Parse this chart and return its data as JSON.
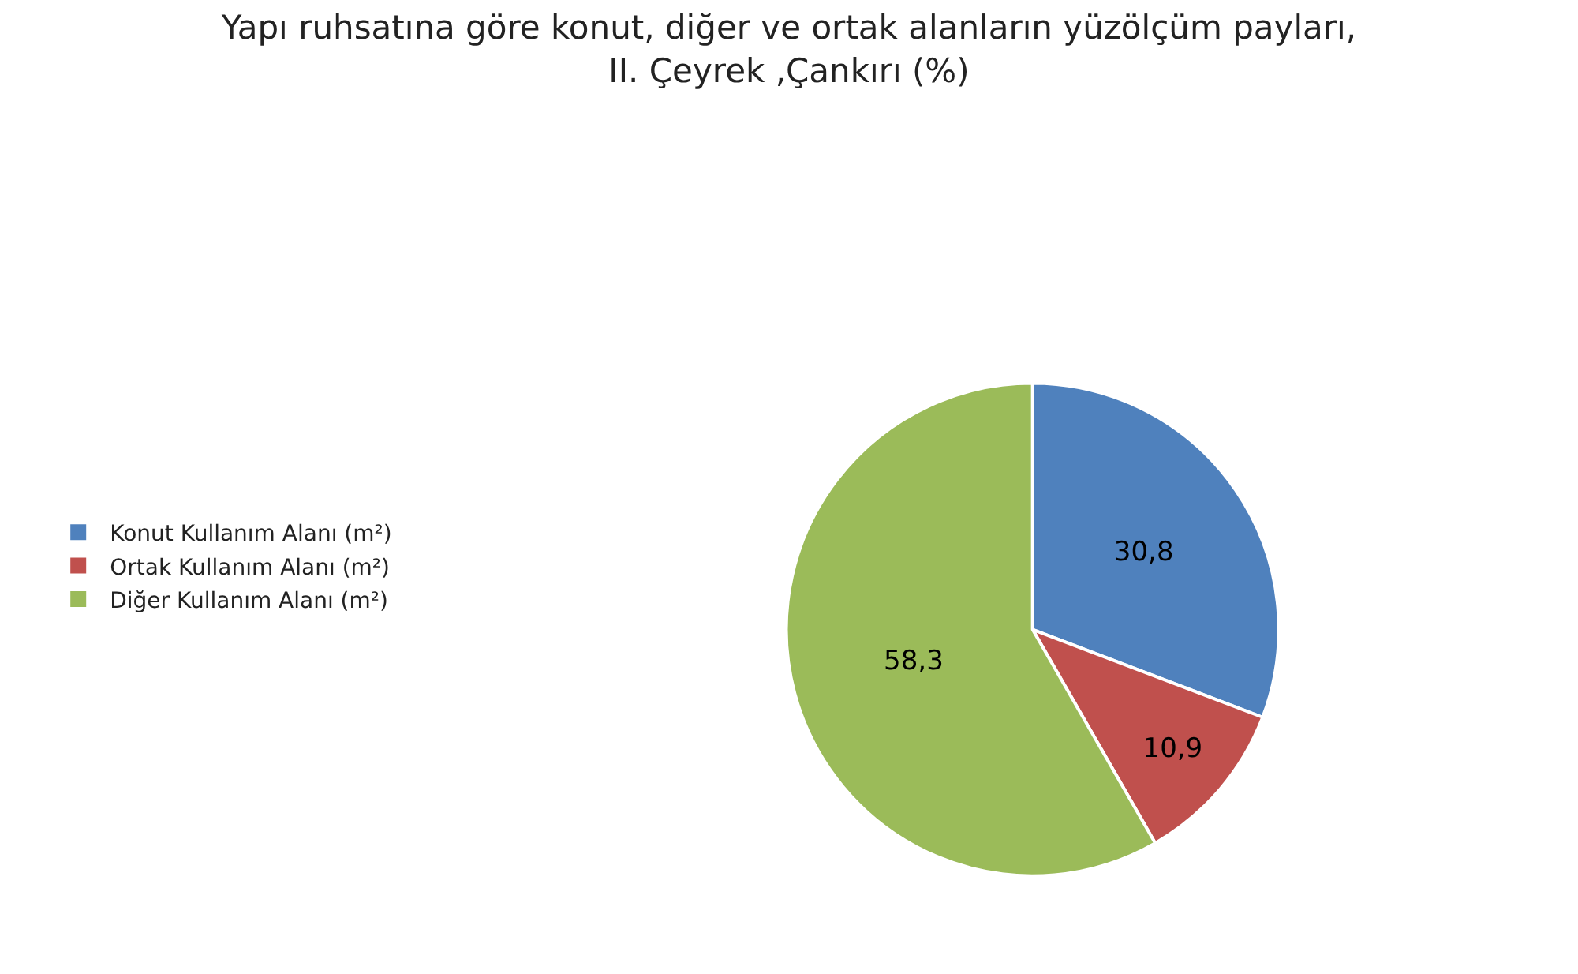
{
  "chart_data": {
    "type": "pie",
    "title": "Yapı ruhsatına göre konut, diğer ve ortak alanların yüzölçüm payları, II. Çeyrek ,Çankırı (%)",
    "categories": [
      "Konut Kullanım Alanı (m²)",
      "Ortak Kullanım Alanı (m²)",
      "Diğer Kullanım Alanı (m²)"
    ],
    "values": [
      30.8,
      10.9,
      58.3
    ],
    "value_labels": [
      "30,8",
      "10,9",
      "58,3"
    ],
    "colors": [
      "#4f81bd",
      "#c0504d",
      "#9bbb59"
    ],
    "legend": "left"
  }
}
